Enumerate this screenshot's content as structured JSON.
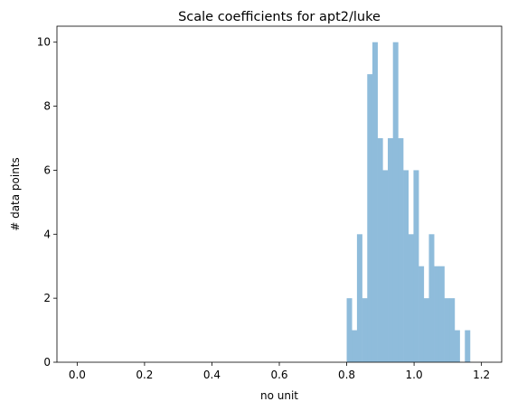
{
  "chart_data": {
    "type": "bar",
    "title": "Scale coefficients for apt2/luke",
    "xlabel": "no unit",
    "ylabel": "# data points",
    "xlim": [
      -0.06,
      1.26
    ],
    "ylim": [
      0,
      10.5
    ],
    "xticks": [
      0.0,
      0.2,
      0.4,
      0.6,
      0.8,
      1.0,
      1.2
    ],
    "xtick_labels": [
      "0.0",
      "0.2",
      "0.4",
      "0.6",
      "0.8",
      "1.0",
      "1.2"
    ],
    "yticks": [
      0,
      2,
      4,
      6,
      8,
      10
    ],
    "ytick_labels": [
      "0",
      "2",
      "4",
      "6",
      "8",
      "10"
    ],
    "grid": false,
    "bar_color": "#8fbcdb",
    "bin_start": 0.8,
    "bin_width": 0.01525,
    "counts": [
      2,
      1,
      4,
      2,
      9,
      10,
      7,
      6,
      7,
      10,
      7,
      6,
      4,
      6,
      3,
      2,
      4,
      3,
      3,
      2,
      2,
      1,
      0,
      1
    ]
  }
}
